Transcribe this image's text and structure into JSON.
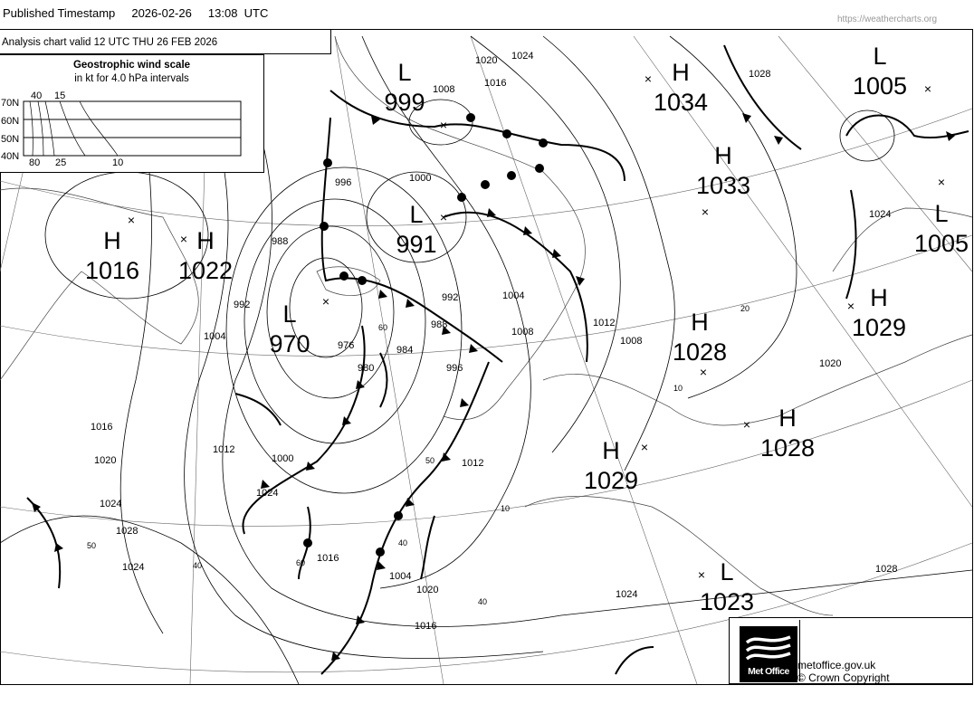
{
  "header": {
    "published_label": "Published Timestamp",
    "date": "2026-02-26",
    "time": "13:08  UTC",
    "source_url": "https://weathercharts.org"
  },
  "chart_info": {
    "valid_text": "Analysis chart  valid 12 UTC THU 26  FEB 2026"
  },
  "wind_scale": {
    "title": "Geostrophic wind scale",
    "subtitle": "in kt for 4.0 hPa intervals",
    "latitudes": [
      "70N",
      "60N",
      "50N",
      "40N"
    ],
    "top_labels": [
      "40",
      "15"
    ],
    "bottom_labels": [
      "80",
      "25",
      "10"
    ]
  },
  "pressure_centers": [
    {
      "type": "L",
      "value": "999"
    },
    {
      "type": "H",
      "value": "1034"
    },
    {
      "type": "L",
      "value": "1005"
    },
    {
      "type": "H",
      "value": "1033"
    },
    {
      "type": "L",
      "value": "991"
    },
    {
      "type": "H",
      "value": "1016"
    },
    {
      "type": "H",
      "value": "1022"
    },
    {
      "type": "L",
      "value": "970"
    },
    {
      "type": "H",
      "value": "1028"
    },
    {
      "type": "H",
      "value": "1029"
    },
    {
      "type": "L",
      "value": "1005"
    },
    {
      "type": "H",
      "value": "1028"
    },
    {
      "type": "H",
      "value": "1029"
    },
    {
      "type": "L",
      "value": "1023"
    }
  ],
  "isobar_labels": [
    "1020",
    "1024",
    "1016",
    "1008",
    "1028",
    "1000",
    "996",
    "988",
    "992",
    "976",
    "980",
    "984",
    "988",
    "992",
    "996",
    "1004",
    "1008",
    "1012",
    "1016",
    "1020",
    "1024",
    "1028",
    "1024",
    "1020",
    "1016",
    "1012",
    "1008",
    "1004",
    "1000",
    "1024",
    "1028",
    "1024",
    "1020",
    "1024",
    "1012",
    "1016",
    "1004"
  ],
  "lat_labels": [
    "60",
    "50",
    "40",
    "20",
    "10",
    "10",
    "40",
    "50",
    "60",
    "40"
  ],
  "footer": {
    "logo_text": "Met Office",
    "site": "metoffice.gov.uk",
    "copyright": "© Crown Copyright"
  }
}
